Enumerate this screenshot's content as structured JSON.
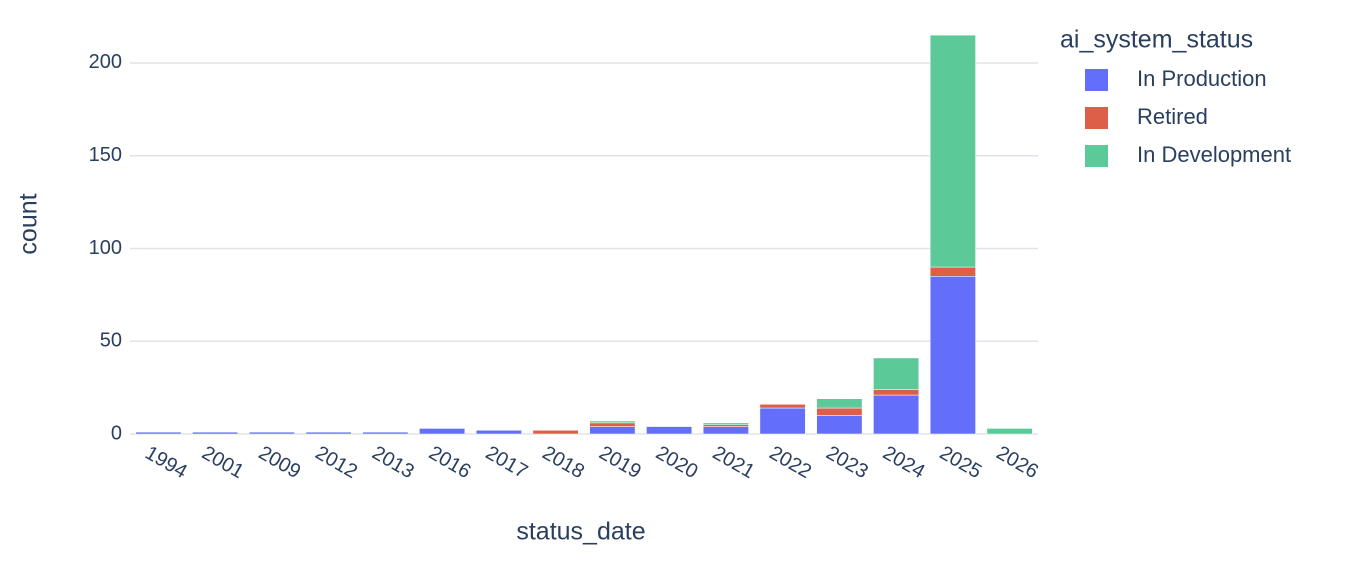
{
  "chart_data": {
    "type": "bar",
    "barmode": "stack",
    "x_label": "status_date",
    "y_label": "count",
    "legend_title": "ai_system_status",
    "legend": "right",
    "grid": true,
    "categories": [
      "1994",
      "2001",
      "2009",
      "2012",
      "2013",
      "2016",
      "2017",
      "2018",
      "2019",
      "2020",
      "2021",
      "2022",
      "2023",
      "2024",
      "2025",
      "2026"
    ],
    "series": [
      {
        "name": "In Production",
        "color": "#636efa",
        "values": [
          1,
          1,
          1,
          1,
          1,
          3,
          2,
          0,
          4,
          4,
          4,
          14,
          10,
          21,
          85,
          0
        ]
      },
      {
        "name": "Retired",
        "color": "#de5f47",
        "values": [
          0,
          0,
          0,
          0,
          0,
          0,
          0,
          2,
          2,
          0,
          1,
          2,
          4,
          3,
          5,
          0
        ]
      },
      {
        "name": "In Development",
        "color": "#5cc999",
        "values": [
          0,
          0,
          0,
          0,
          0,
          0,
          0,
          0,
          1,
          0,
          1,
          0,
          5,
          17,
          125,
          3
        ]
      }
    ],
    "ylim": [
      0,
      221
    ],
    "yticks": [
      0,
      50,
      100,
      150,
      200
    ]
  }
}
